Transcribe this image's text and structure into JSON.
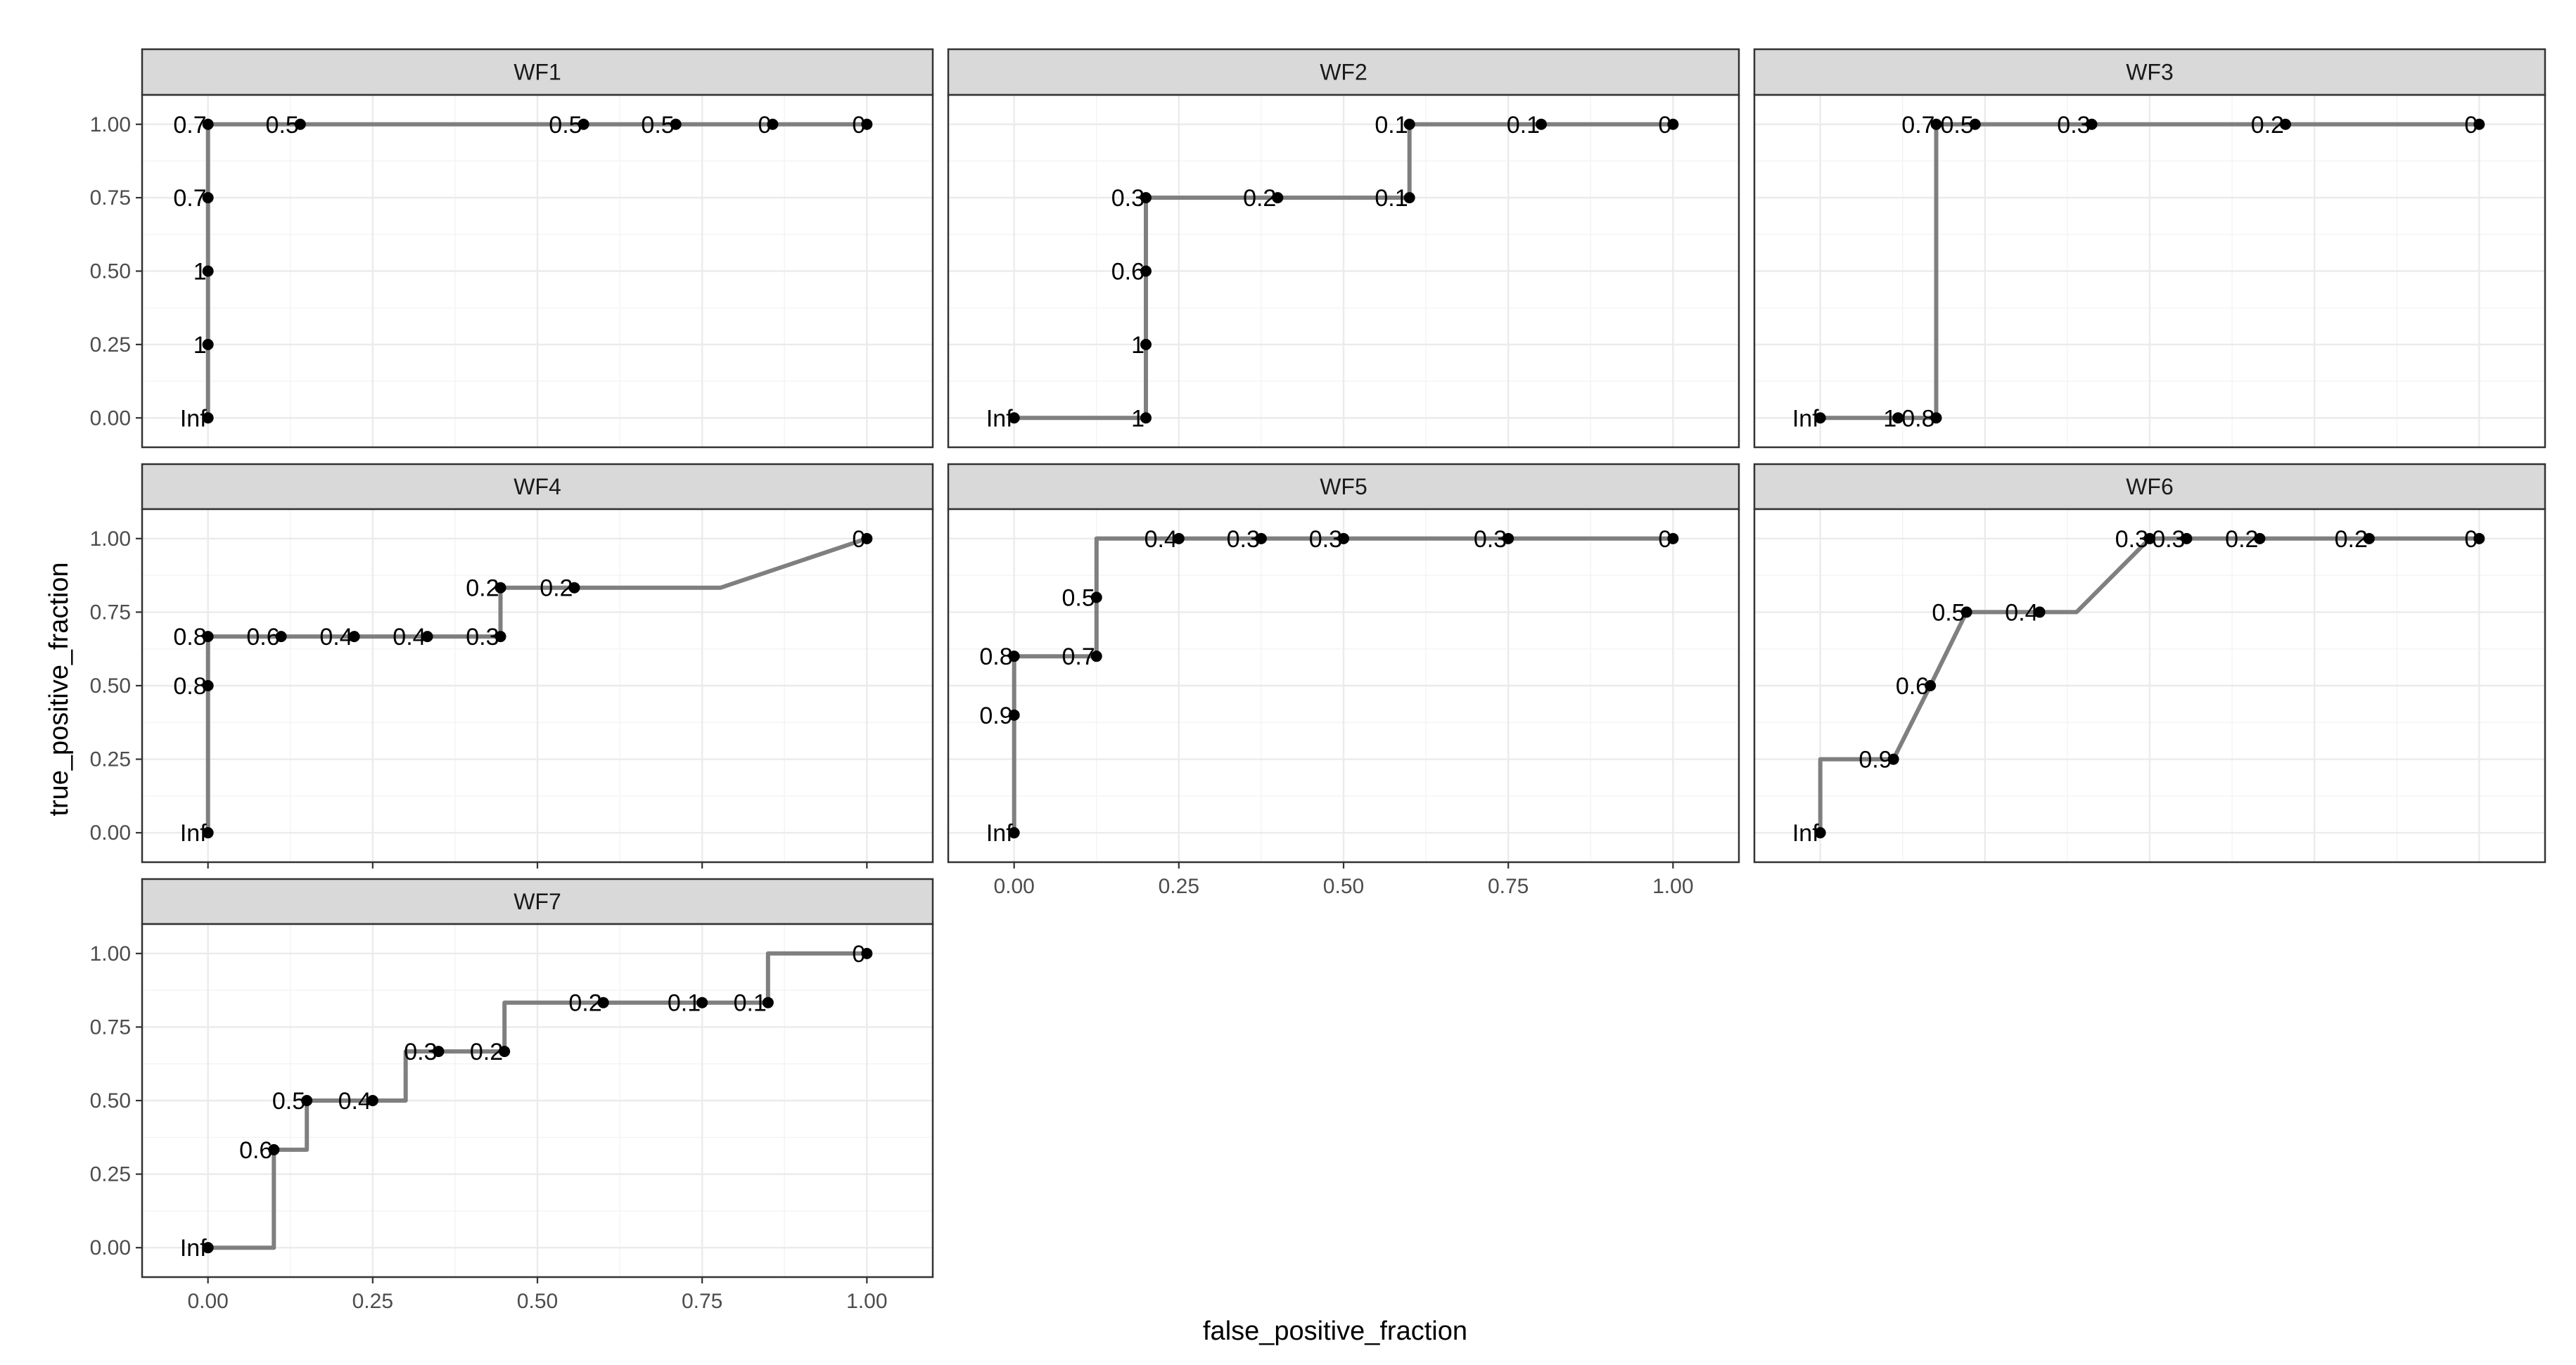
{
  "colors": {
    "line": "#7f7f7f",
    "point": "#000000",
    "strip": "#d9d9d9",
    "grid": "#ebebeb"
  },
  "chart_data": {
    "type": "line",
    "xlabel": "false_positive_fraction",
    "ylabel": "true_positive_fraction",
    "xlim": [
      0,
      1
    ],
    "ylim": [
      0,
      1
    ],
    "xticks": [
      "0.00",
      "0.25",
      "0.50",
      "0.75",
      "1.00"
    ],
    "yticks": [
      "0.00",
      "0.25",
      "0.50",
      "0.75",
      "1.00"
    ],
    "grid": true,
    "facets": [
      {
        "name": "WF1",
        "line": [
          [
            0,
            0
          ],
          [
            0,
            0.25
          ],
          [
            0,
            0.5
          ],
          [
            0,
            0.75
          ],
          [
            0,
            1
          ],
          [
            0.14,
            1
          ],
          [
            0.57,
            1
          ],
          [
            0.71,
            1
          ],
          [
            0.857,
            1
          ],
          [
            1,
            1
          ]
        ],
        "points": [
          {
            "x": 0,
            "y": 0,
            "label": "Inf"
          },
          {
            "x": 0,
            "y": 0.25,
            "label": "1"
          },
          {
            "x": 0,
            "y": 0.5,
            "label": "1"
          },
          {
            "x": 0,
            "y": 0.75,
            "label": "0.7"
          },
          {
            "x": 0,
            "y": 1,
            "label": "0.7"
          },
          {
            "x": 0.14,
            "y": 1,
            "label": "0.5"
          },
          {
            "x": 0.57,
            "y": 1,
            "label": "0.5"
          },
          {
            "x": 0.71,
            "y": 1,
            "label": "0.5"
          },
          {
            "x": 0.857,
            "y": 1,
            "label": "0"
          },
          {
            "x": 1,
            "y": 1,
            "label": "0"
          }
        ]
      },
      {
        "name": "WF2",
        "line": [
          [
            0,
            0
          ],
          [
            0.2,
            0
          ],
          [
            0.2,
            0.25
          ],
          [
            0.2,
            0.5
          ],
          [
            0.2,
            0.75
          ],
          [
            0.4,
            0.75
          ],
          [
            0.6,
            0.75
          ],
          [
            0.6,
            1
          ],
          [
            0.8,
            1
          ],
          [
            1,
            1
          ]
        ],
        "points": [
          {
            "x": 0,
            "y": 0,
            "label": "Inf"
          },
          {
            "x": 0.2,
            "y": 0,
            "label": "1"
          },
          {
            "x": 0.2,
            "y": 0.25,
            "label": "1"
          },
          {
            "x": 0.2,
            "y": 0.5,
            "label": "0.6"
          },
          {
            "x": 0.2,
            "y": 0.75,
            "label": "0.3"
          },
          {
            "x": 0.4,
            "y": 0.75,
            "label": "0.2"
          },
          {
            "x": 0.6,
            "y": 0.75,
            "label": "0.1"
          },
          {
            "x": 0.6,
            "y": 1,
            "label": "0.1"
          },
          {
            "x": 0.8,
            "y": 1,
            "label": "0.1"
          },
          {
            "x": 1,
            "y": 1,
            "label": "0"
          }
        ]
      },
      {
        "name": "WF3",
        "line": [
          [
            0,
            0
          ],
          [
            0.118,
            0
          ],
          [
            0.176,
            0
          ],
          [
            0.176,
            1
          ],
          [
            0.235,
            1
          ],
          [
            0.412,
            1
          ],
          [
            0.706,
            1
          ],
          [
            1,
            1
          ]
        ],
        "points": [
          {
            "x": 0,
            "y": 0,
            "label": "Inf"
          },
          {
            "x": 0.118,
            "y": 0,
            "label": "1"
          },
          {
            "x": 0.176,
            "y": 0,
            "label": "0.8"
          },
          {
            "x": 0.176,
            "y": 1,
            "label": "0.7"
          },
          {
            "x": 0.235,
            "y": 1,
            "label": "0.5"
          },
          {
            "x": 0.412,
            "y": 1,
            "label": "0.3"
          },
          {
            "x": 0.706,
            "y": 1,
            "label": "0.2"
          },
          {
            "x": 1,
            "y": 1,
            "label": "0"
          }
        ]
      },
      {
        "name": "WF4",
        "line": [
          [
            0,
            0
          ],
          [
            0,
            0.5
          ],
          [
            0,
            0.667
          ],
          [
            0.111,
            0.667
          ],
          [
            0.222,
            0.667
          ],
          [
            0.333,
            0.667
          ],
          [
            0.444,
            0.667
          ],
          [
            0.444,
            0.833
          ],
          [
            0.556,
            0.833
          ],
          [
            0.778,
            0.833
          ],
          [
            1,
            1
          ]
        ],
        "points": [
          {
            "x": 0,
            "y": 0,
            "label": "Inf"
          },
          {
            "x": 0,
            "y": 0.5,
            "label": "0.8"
          },
          {
            "x": 0,
            "y": 0.667,
            "label": "0.8"
          },
          {
            "x": 0.111,
            "y": 0.667,
            "label": "0.6"
          },
          {
            "x": 0.222,
            "y": 0.667,
            "label": "0.4"
          },
          {
            "x": 0.333,
            "y": 0.667,
            "label": "0.4"
          },
          {
            "x": 0.444,
            "y": 0.667,
            "label": "0.3"
          },
          {
            "x": 0.444,
            "y": 0.833,
            "label": "0.2"
          },
          {
            "x": 0.556,
            "y": 0.833,
            "label": "0.2"
          },
          {
            "x": 1,
            "y": 1,
            "label": "0"
          }
        ]
      },
      {
        "name": "WF5",
        "line": [
          [
            0,
            0
          ],
          [
            0,
            0.4
          ],
          [
            0,
            0.6
          ],
          [
            0.125,
            0.6
          ],
          [
            0.125,
            0.8
          ],
          [
            0.125,
            1
          ],
          [
            0.25,
            1
          ],
          [
            0.375,
            1
          ],
          [
            0.5,
            1
          ],
          [
            0.75,
            1
          ],
          [
            1,
            1
          ]
        ],
        "points": [
          {
            "x": 0,
            "y": 0,
            "label": "Inf"
          },
          {
            "x": 0,
            "y": 0.4,
            "label": "0.9"
          },
          {
            "x": 0,
            "y": 0.6,
            "label": "0.8"
          },
          {
            "x": 0.125,
            "y": 0.6,
            "label": "0.7"
          },
          {
            "x": 0.125,
            "y": 0.8,
            "label": "0.5"
          },
          {
            "x": 0.25,
            "y": 1,
            "label": "0.4"
          },
          {
            "x": 0.375,
            "y": 1,
            "label": "0.3"
          },
          {
            "x": 0.5,
            "y": 1,
            "label": "0.3"
          },
          {
            "x": 0.75,
            "y": 1,
            "label": "0.3"
          },
          {
            "x": 1,
            "y": 1,
            "label": "0"
          }
        ]
      },
      {
        "name": "WF6",
        "line": [
          [
            0,
            0
          ],
          [
            0,
            0.25
          ],
          [
            0.111,
            0.25
          ],
          [
            0.167,
            0.5
          ],
          [
            0.222,
            0.75
          ],
          [
            0.333,
            0.75
          ],
          [
            0.389,
            0.75
          ],
          [
            0.5,
            1
          ],
          [
            0.556,
            1
          ],
          [
            0.667,
            1
          ],
          [
            0.833,
            1
          ],
          [
            1,
            1
          ]
        ],
        "points": [
          {
            "x": 0,
            "y": 0,
            "label": "Inf"
          },
          {
            "x": 0.111,
            "y": 0.25,
            "label": "0.9"
          },
          {
            "x": 0.167,
            "y": 0.5,
            "label": "0.6"
          },
          {
            "x": 0.222,
            "y": 0.75,
            "label": "0.5"
          },
          {
            "x": 0.333,
            "y": 0.75,
            "label": "0.4"
          },
          {
            "x": 0.5,
            "y": 1,
            "label": "0.3"
          },
          {
            "x": 0.556,
            "y": 1,
            "label": "0.3"
          },
          {
            "x": 0.667,
            "y": 1,
            "label": "0.2"
          },
          {
            "x": 0.833,
            "y": 1,
            "label": "0.2"
          },
          {
            "x": 1,
            "y": 1,
            "label": "0"
          }
        ]
      },
      {
        "name": "WF7",
        "line": [
          [
            0,
            0
          ],
          [
            0.1,
            0
          ],
          [
            0.1,
            0.333
          ],
          [
            0.15,
            0.333
          ],
          [
            0.15,
            0.5
          ],
          [
            0.25,
            0.5
          ],
          [
            0.3,
            0.5
          ],
          [
            0.3,
            0.667
          ],
          [
            0.35,
            0.667
          ],
          [
            0.45,
            0.667
          ],
          [
            0.45,
            0.833
          ],
          [
            0.6,
            0.833
          ],
          [
            0.75,
            0.833
          ],
          [
            0.85,
            0.833
          ],
          [
            0.85,
            1
          ],
          [
            1,
            1
          ]
        ],
        "points": [
          {
            "x": 0,
            "y": 0,
            "label": "Inf"
          },
          {
            "x": 0.1,
            "y": 0.333,
            "label": "0.6"
          },
          {
            "x": 0.15,
            "y": 0.5,
            "label": "0.5"
          },
          {
            "x": 0.25,
            "y": 0.5,
            "label": "0.4"
          },
          {
            "x": 0.35,
            "y": 0.667,
            "label": "0.3"
          },
          {
            "x": 0.45,
            "y": 0.667,
            "label": "0.2"
          },
          {
            "x": 0.6,
            "y": 0.833,
            "label": "0.2"
          },
          {
            "x": 0.75,
            "y": 0.833,
            "label": "0.1"
          },
          {
            "x": 0.85,
            "y": 0.833,
            "label": "0.1"
          },
          {
            "x": 1,
            "y": 1,
            "label": "0"
          }
        ]
      }
    ]
  }
}
